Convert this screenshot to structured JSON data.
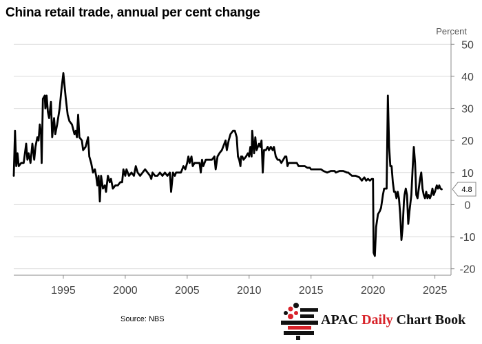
{
  "header": {
    "title": "China retail trade, annual per cent change",
    "unit": "Percent"
  },
  "footer": {
    "source": "Source: NBS",
    "brand_prefix": "APAC",
    "brand_daily": "Daily",
    "brand_suffix": "Chart Book"
  },
  "chart_data": {
    "type": "line",
    "title": "China retail trade, annual per cent change",
    "xlabel": "",
    "ylabel": "Percent",
    "xlim": [
      1991,
      2026.3
    ],
    "ylim": [
      -22,
      52
    ],
    "y_ticks": [
      50,
      40,
      30,
      20,
      10,
      0,
      -10,
      -20
    ],
    "x_ticks": [
      1995,
      2000,
      2005,
      2010,
      2015,
      2020,
      2025
    ],
    "grid": true,
    "y_axis_side": "right",
    "last_value_label": "4.8",
    "series": [
      {
        "color": "#000000",
        "points": [
          [
            1991.0,
            9
          ],
          [
            1991.1,
            23
          ],
          [
            1991.2,
            12
          ],
          [
            1991.3,
            16
          ],
          [
            1991.4,
            12
          ],
          [
            1991.6,
            13
          ],
          [
            1991.8,
            13
          ],
          [
            1992.0,
            19
          ],
          [
            1992.1,
            14
          ],
          [
            1992.2,
            16
          ],
          [
            1992.35,
            13
          ],
          [
            1992.5,
            19
          ],
          [
            1992.65,
            14
          ],
          [
            1992.75,
            18
          ],
          [
            1992.9,
            21
          ],
          [
            1993.0,
            20
          ],
          [
            1993.1,
            25
          ],
          [
            1993.2,
            22
          ],
          [
            1993.25,
            13
          ],
          [
            1993.35,
            33
          ],
          [
            1993.5,
            34
          ],
          [
            1993.55,
            30
          ],
          [
            1993.65,
            34
          ],
          [
            1993.75,
            29
          ],
          [
            1993.85,
            27
          ],
          [
            1994.0,
            32
          ],
          [
            1994.1,
            21
          ],
          [
            1994.25,
            27
          ],
          [
            1994.35,
            22
          ],
          [
            1994.5,
            25
          ],
          [
            1994.7,
            30
          ],
          [
            1994.85,
            36
          ],
          [
            1995.0,
            41
          ],
          [
            1995.2,
            33
          ],
          [
            1995.35,
            28
          ],
          [
            1995.5,
            26
          ],
          [
            1995.7,
            25
          ],
          [
            1995.9,
            22
          ],
          [
            1996.0,
            23
          ],
          [
            1996.1,
            21
          ],
          [
            1996.2,
            28
          ],
          [
            1996.3,
            21
          ],
          [
            1996.5,
            20
          ],
          [
            1996.6,
            17
          ],
          [
            1996.8,
            18
          ],
          [
            1997.0,
            21
          ],
          [
            1997.1,
            15
          ],
          [
            1997.25,
            13
          ],
          [
            1997.4,
            10
          ],
          [
            1997.55,
            11
          ],
          [
            1997.65,
            9
          ],
          [
            1997.75,
            6
          ],
          [
            1997.85,
            9
          ],
          [
            1997.95,
            1
          ],
          [
            1998.05,
            9
          ],
          [
            1998.2,
            5
          ],
          [
            1998.35,
            6
          ],
          [
            1998.45,
            4
          ],
          [
            1998.6,
            9
          ],
          [
            1998.75,
            7
          ],
          [
            1998.85,
            8
          ],
          [
            1999.0,
            5
          ],
          [
            1999.2,
            6
          ],
          [
            1999.4,
            6
          ],
          [
            1999.6,
            7
          ],
          [
            1999.75,
            7
          ],
          [
            1999.85,
            11
          ],
          [
            2000.0,
            9
          ],
          [
            2000.1,
            11
          ],
          [
            2000.3,
            9
          ],
          [
            2000.5,
            10
          ],
          [
            2000.7,
            9
          ],
          [
            2000.85,
            12
          ],
          [
            2001.0,
            10
          ],
          [
            2001.2,
            9
          ],
          [
            2001.4,
            10
          ],
          [
            2001.6,
            11
          ],
          [
            2001.8,
            10
          ],
          [
            2002.0,
            9
          ],
          [
            2002.1,
            8
          ],
          [
            2002.2,
            10
          ],
          [
            2002.4,
            9
          ],
          [
            2002.6,
            9
          ],
          [
            2002.8,
            10
          ],
          [
            2003.0,
            9
          ],
          [
            2003.2,
            10
          ],
          [
            2003.4,
            9
          ],
          [
            2003.6,
            10
          ],
          [
            2003.7,
            4
          ],
          [
            2003.85,
            10
          ],
          [
            2004.0,
            9
          ],
          [
            2004.1,
            10
          ],
          [
            2004.3,
            10
          ],
          [
            2004.5,
            10
          ],
          [
            2004.7,
            12
          ],
          [
            2004.85,
            11
          ],
          [
            2005.0,
            13
          ],
          [
            2005.1,
            15
          ],
          [
            2005.2,
            13
          ],
          [
            2005.35,
            15
          ],
          [
            2005.45,
            12
          ],
          [
            2005.6,
            13
          ],
          [
            2005.8,
            13
          ],
          [
            2006.0,
            13
          ],
          [
            2006.1,
            10
          ],
          [
            2006.2,
            14
          ],
          [
            2006.3,
            12
          ],
          [
            2006.5,
            14
          ],
          [
            2006.7,
            14
          ],
          [
            2006.85,
            14
          ],
          [
            2007.0,
            14
          ],
          [
            2007.2,
            15
          ],
          [
            2007.3,
            11
          ],
          [
            2007.45,
            15
          ],
          [
            2007.6,
            16
          ],
          [
            2007.8,
            17
          ],
          [
            2008.0,
            19
          ],
          [
            2008.1,
            20
          ],
          [
            2008.2,
            17
          ],
          [
            2008.35,
            20
          ],
          [
            2008.5,
            22
          ],
          [
            2008.7,
            23
          ],
          [
            2008.85,
            23
          ],
          [
            2009.0,
            21
          ],
          [
            2009.1,
            15
          ],
          [
            2009.2,
            14
          ],
          [
            2009.3,
            12
          ],
          [
            2009.35,
            15
          ],
          [
            2009.45,
            15
          ],
          [
            2009.55,
            14
          ],
          [
            2009.75,
            15
          ],
          [
            2009.9,
            16
          ],
          [
            2010.0,
            15
          ],
          [
            2010.1,
            18
          ],
          [
            2010.2,
            15
          ],
          [
            2010.25,
            23
          ],
          [
            2010.4,
            16
          ],
          [
            2010.5,
            21
          ],
          [
            2010.6,
            17
          ],
          [
            2010.7,
            18
          ],
          [
            2010.8,
            19
          ],
          [
            2010.9,
            18
          ],
          [
            2011.0,
            20
          ],
          [
            2011.1,
            10
          ],
          [
            2011.2,
            17
          ],
          [
            2011.35,
            17
          ],
          [
            2011.5,
            18
          ],
          [
            2011.6,
            17
          ],
          [
            2011.75,
            18
          ],
          [
            2011.9,
            17
          ],
          [
            2012.0,
            18
          ],
          [
            2012.15,
            15
          ],
          [
            2012.3,
            14
          ],
          [
            2012.45,
            14
          ],
          [
            2012.6,
            13
          ],
          [
            2012.75,
            14
          ],
          [
            2012.9,
            15
          ],
          [
            2013.0,
            15
          ],
          [
            2013.1,
            12
          ],
          [
            2013.2,
            13
          ],
          [
            2013.35,
            13
          ],
          [
            2013.5,
            13
          ],
          [
            2013.7,
            13
          ],
          [
            2013.85,
            13
          ],
          [
            2014.0,
            12
          ],
          [
            2014.1,
            12
          ],
          [
            2014.3,
            12
          ],
          [
            2014.5,
            12
          ],
          [
            2014.7,
            11.5
          ],
          [
            2014.9,
            11.5
          ],
          [
            2015.0,
            11
          ],
          [
            2015.2,
            11
          ],
          [
            2015.5,
            11
          ],
          [
            2015.8,
            11
          ],
          [
            2016.0,
            10.5
          ],
          [
            2016.3,
            10
          ],
          [
            2016.6,
            10.5
          ],
          [
            2016.9,
            10.5
          ],
          [
            2017.0,
            10
          ],
          [
            2017.3,
            10.5
          ],
          [
            2017.6,
            10.5
          ],
          [
            2017.9,
            10
          ],
          [
            2018.0,
            10
          ],
          [
            2018.3,
            9
          ],
          [
            2018.6,
            9
          ],
          [
            2018.9,
            8.5
          ],
          [
            2019.0,
            8
          ],
          [
            2019.1,
            7.5
          ],
          [
            2019.3,
            8.5
          ],
          [
            2019.45,
            7.5
          ],
          [
            2019.6,
            8
          ],
          [
            2019.75,
            7.5
          ],
          [
            2019.9,
            8
          ],
          [
            2020.0,
            8
          ],
          [
            2020.05,
            -15
          ],
          [
            2020.15,
            -16
          ],
          [
            2020.25,
            -7
          ],
          [
            2020.4,
            -3
          ],
          [
            2020.55,
            -2
          ],
          [
            2020.65,
            -1
          ],
          [
            2020.8,
            3
          ],
          [
            2020.9,
            5
          ],
          [
            2021.0,
            5
          ],
          [
            2021.1,
            5
          ],
          [
            2021.2,
            34
          ],
          [
            2021.3,
            18
          ],
          [
            2021.4,
            12
          ],
          [
            2021.5,
            12
          ],
          [
            2021.6,
            7
          ],
          [
            2021.7,
            4
          ],
          [
            2021.8,
            4
          ],
          [
            2021.9,
            2
          ],
          [
            2022.0,
            4
          ],
          [
            2022.1,
            2
          ],
          [
            2022.2,
            -3
          ],
          [
            2022.3,
            -11
          ],
          [
            2022.4,
            -7
          ],
          [
            2022.5,
            1
          ],
          [
            2022.55,
            3
          ],
          [
            2022.65,
            5
          ],
          [
            2022.75,
            3
          ],
          [
            2022.85,
            -6
          ],
          [
            2022.95,
            -2
          ],
          [
            2023.1,
            3
          ],
          [
            2023.2,
            11
          ],
          [
            2023.3,
            18
          ],
          [
            2023.4,
            13
          ],
          [
            2023.5,
            3
          ],
          [
            2023.6,
            2
          ],
          [
            2023.7,
            5
          ],
          [
            2023.8,
            8
          ],
          [
            2023.9,
            10
          ],
          [
            2024.0,
            5
          ],
          [
            2024.1,
            3
          ],
          [
            2024.2,
            2
          ],
          [
            2024.3,
            4
          ],
          [
            2024.4,
            2
          ],
          [
            2024.5,
            3
          ],
          [
            2024.6,
            2
          ],
          [
            2024.7,
            3
          ],
          [
            2024.8,
            5
          ],
          [
            2024.9,
            3
          ],
          [
            2025.0,
            4
          ],
          [
            2025.15,
            6
          ],
          [
            2025.25,
            5
          ],
          [
            2025.35,
            6
          ],
          [
            2025.45,
            5
          ],
          [
            2025.55,
            4.8
          ]
        ]
      }
    ]
  }
}
